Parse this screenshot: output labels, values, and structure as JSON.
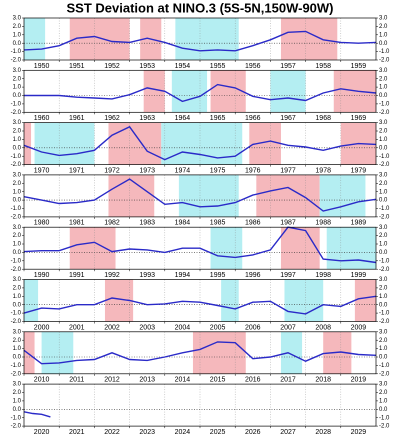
{
  "chart_data": {
    "type": "line",
    "title": "SST Deviation at NINO.3 (5S-5N,150W-90W)",
    "ylim": [
      -2,
      3
    ],
    "yticks": [
      {
        "value": 3,
        "label": "3.0"
      },
      {
        "value": 2,
        "label": "2.0"
      },
      {
        "value": 1,
        "label": "1.0"
      },
      {
        "value": 0,
        "label": "0.0"
      },
      {
        "value": -1,
        "label": "-1.0"
      },
      {
        "value": -2,
        "label": "-2.0"
      }
    ],
    "line_color": "#2a2ac8",
    "warm_color": "#f5b8bc",
    "cool_color": "#b4eef2",
    "panels": [
      {
        "xlim": [
          1950,
          1960
        ],
        "xticks": [
          1950,
          1951,
          1952,
          1953,
          1954,
          1955,
          1956,
          1957,
          1958,
          1959
        ],
        "warm": [
          [
            1951.3,
            1953.0
          ],
          [
            1953.3,
            1953.9
          ],
          [
            1957.3,
            1958.9
          ]
        ],
        "cool": [
          [
            1950.0,
            1950.6
          ],
          [
            1954.3,
            1956.1
          ]
        ],
        "x": [
          1950,
          1950.5,
          1951,
          1951.5,
          1952,
          1952.5,
          1953,
          1953.5,
          1954,
          1954.5,
          1955,
          1955.5,
          1956,
          1956.5,
          1957,
          1957.5,
          1958,
          1958.5,
          1959,
          1959.5,
          1960
        ],
        "values": [
          -0.8,
          -0.7,
          -0.3,
          0.6,
          0.8,
          0.2,
          0.1,
          0.6,
          0.1,
          -0.6,
          -0.9,
          -0.8,
          -0.9,
          -0.3,
          0.4,
          1.3,
          1.4,
          0.4,
          0.1,
          0.0,
          0.1
        ]
      },
      {
        "xlim": [
          1960,
          1970
        ],
        "xticks": [
          1960,
          1961,
          1962,
          1963,
          1964,
          1965,
          1966,
          1967,
          1968,
          1969
        ],
        "warm": [
          [
            1963.4,
            1964.0
          ],
          [
            1965.3,
            1966.3
          ],
          [
            1968.8,
            1970.0
          ]
        ],
        "cool": [
          [
            1964.2,
            1965.2
          ],
          [
            1967.0,
            1968.0
          ]
        ],
        "x": [
          1960,
          1960.5,
          1961,
          1961.5,
          1962,
          1962.5,
          1963,
          1963.5,
          1964,
          1964.5,
          1965,
          1965.5,
          1966,
          1966.5,
          1967,
          1967.5,
          1968,
          1968.5,
          1969,
          1969.5,
          1970
        ],
        "values": [
          0.0,
          0.0,
          0.0,
          -0.2,
          -0.3,
          -0.4,
          0.1,
          0.9,
          0.5,
          -0.7,
          -0.1,
          1.3,
          0.9,
          -0.1,
          -0.5,
          -0.3,
          -0.6,
          0.3,
          0.8,
          0.5,
          0.3
        ]
      },
      {
        "xlim": [
          1970,
          1980
        ],
        "xticks": [
          1970,
          1971,
          1972,
          1973,
          1974,
          1975,
          1976,
          1977,
          1978,
          1979
        ],
        "warm": [
          [
            1970.0,
            1970.2
          ],
          [
            1972.4,
            1973.9
          ],
          [
            1976.4,
            1977.3
          ],
          [
            1979.0,
            1980.0
          ]
        ],
        "cool": [
          [
            1970.3,
            1972.0
          ],
          [
            1973.9,
            1976.2
          ]
        ],
        "x": [
          1970,
          1970.5,
          1971,
          1971.5,
          1972,
          1972.5,
          1973,
          1973.5,
          1974,
          1974.5,
          1975,
          1975.5,
          1976,
          1976.5,
          1977,
          1977.5,
          1978,
          1978.5,
          1979,
          1979.5,
          1980
        ],
        "values": [
          0.3,
          -0.5,
          -0.9,
          -0.7,
          -0.3,
          1.5,
          2.5,
          -0.4,
          -1.4,
          -0.5,
          -0.8,
          -1.2,
          -1.0,
          0.4,
          0.8,
          0.3,
          0.1,
          -0.3,
          0.2,
          0.5,
          0.4
        ]
      },
      {
        "xlim": [
          1980,
          1990
        ],
        "xticks": [
          1980,
          1981,
          1982,
          1983,
          1984,
          1985,
          1986,
          1987,
          1988,
          1989
        ],
        "warm": [
          [
            1982.4,
            1983.7
          ],
          [
            1986.6,
            1988.4
          ]
        ],
        "cool": [
          [
            1984.4,
            1986.1
          ],
          [
            1988.4,
            1989.7
          ]
        ],
        "x": [
          1980,
          1980.5,
          1981,
          1981.5,
          1982,
          1982.5,
          1983,
          1983.5,
          1984,
          1984.5,
          1985,
          1985.5,
          1986,
          1986.5,
          1987,
          1987.5,
          1988,
          1988.5,
          1989,
          1989.5,
          1990
        ],
        "values": [
          0.4,
          0.0,
          -0.4,
          -0.3,
          0.0,
          1.3,
          2.5,
          1.0,
          -0.5,
          -0.3,
          -0.8,
          -0.7,
          -0.3,
          0.6,
          1.1,
          1.5,
          0.3,
          -1.3,
          -0.8,
          -0.2,
          0.1
        ]
      },
      {
        "xlim": [
          1990,
          2000
        ],
        "xticks": [
          1990,
          1991,
          1992,
          1993,
          1994,
          1995,
          1996,
          1997,
          1998,
          1999
        ],
        "warm": [
          [
            1991.3,
            1992.6
          ],
          [
            1997.3,
            1998.4
          ]
        ],
        "cool": [
          [
            1995.3,
            1996.2
          ],
          [
            1998.6,
            2000.0
          ]
        ],
        "x": [
          1990,
          1990.5,
          1991,
          1991.5,
          1992,
          1992.5,
          1993,
          1993.5,
          1994,
          1994.5,
          1995,
          1995.5,
          1996,
          1996.5,
          1997,
          1997.5,
          1998,
          1998.5,
          1999,
          1999.5,
          2000
        ],
        "values": [
          0.1,
          0.2,
          0.2,
          0.9,
          1.2,
          0.1,
          0.4,
          0.3,
          0.0,
          0.5,
          0.5,
          -0.4,
          -0.6,
          -0.3,
          0.3,
          3.0,
          2.6,
          -0.8,
          -1.0,
          -0.9,
          -1.2
        ]
      },
      {
        "xlim": [
          2000,
          2010
        ],
        "xticks": [
          2000,
          2001,
          2002,
          2003,
          2004,
          2005,
          2006,
          2007,
          2008,
          2009
        ],
        "warm": [
          [
            2002.3,
            2003.1
          ],
          [
            2009.4,
            2010.0
          ]
        ],
        "cool": [
          [
            2000.0,
            2000.4
          ],
          [
            2005.6,
            2006.1
          ],
          [
            2007.4,
            2008.5
          ]
        ],
        "x": [
          2000,
          2000.5,
          2001,
          2001.5,
          2002,
          2002.5,
          2003,
          2003.5,
          2004,
          2004.5,
          2005,
          2005.5,
          2006,
          2006.5,
          2007,
          2007.5,
          2008,
          2008.5,
          2009,
          2009.5,
          2010
        ],
        "values": [
          -1.0,
          -0.4,
          -0.5,
          0.0,
          0.0,
          0.8,
          0.5,
          0.0,
          0.1,
          0.4,
          0.3,
          -0.1,
          -0.5,
          0.3,
          0.4,
          -0.8,
          -1.1,
          0.0,
          -0.2,
          0.7,
          1.0
        ]
      },
      {
        "xlim": [
          2010,
          2020
        ],
        "xticks": [
          2010,
          2011,
          2012,
          2013,
          2014,
          2015,
          2016,
          2017,
          2018,
          2019
        ],
        "warm": [
          [
            2010.0,
            2010.3
          ],
          [
            2014.8,
            2016.3
          ],
          [
            2018.5,
            2019.3
          ]
        ],
        "cool": [
          [
            2010.5,
            2011.4
          ],
          [
            2017.3,
            2017.9
          ]
        ],
        "x": [
          2010,
          2010.5,
          2011,
          2011.5,
          2012,
          2012.5,
          2013,
          2013.5,
          2014,
          2014.5,
          2015,
          2015.5,
          2016,
          2016.5,
          2017,
          2017.5,
          2018,
          2018.5,
          2019,
          2019.5,
          2020
        ],
        "values": [
          0.8,
          -0.8,
          -0.7,
          -0.4,
          -0.3,
          0.5,
          -0.3,
          -0.4,
          0.0,
          0.5,
          0.9,
          1.8,
          1.7,
          -0.2,
          0.0,
          0.5,
          -0.5,
          0.4,
          0.6,
          0.3,
          0.2
        ]
      },
      {
        "xlim": [
          2020,
          2030
        ],
        "xticks": [
          2020,
          2021,
          2022,
          2023,
          2024,
          2025,
          2026,
          2027,
          2028,
          2029
        ],
        "warm": [],
        "cool": [],
        "x": [
          2020,
          2020.25,
          2020.5,
          2020.75
        ],
        "values": [
          -0.3,
          -0.5,
          -0.6,
          -0.9
        ]
      }
    ]
  }
}
